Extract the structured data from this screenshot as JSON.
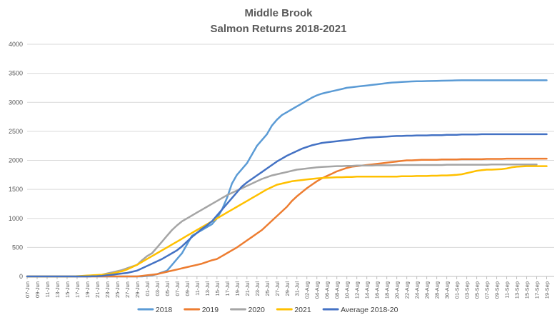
{
  "chart_data": {
    "type": "line",
    "title": "Middle Brook",
    "subtitle": "Salmon Returns 2018-2021",
    "xlabel": "",
    "ylabel": "",
    "ylim": [
      0,
      4000
    ],
    "yticks": [
      0,
      500,
      1000,
      1500,
      2000,
      2500,
      3000,
      3500,
      4000
    ],
    "grid": true,
    "legend_position": "bottom",
    "x_tick_labels": [
      "07-Jun",
      "09-Jun",
      "11-Jun",
      "13-Jun",
      "15-Jun",
      "17-Jun",
      "19-Jun",
      "21-Jun",
      "23-Jun",
      "25-Jun",
      "27-Jun",
      "29-Jun",
      "01-Jul",
      "03-Jul",
      "05-Jul",
      "07-Jul",
      "09-Jul",
      "11-Jul",
      "13-Jul",
      "15-Jul",
      "17-Jul",
      "19-Jul",
      "21-Jul",
      "23-Jul",
      "25-Jul",
      "27-Jul",
      "29-Jul",
      "31-Jul",
      "02-Aug",
      "04-Aug",
      "06-Aug",
      "08-Aug",
      "10-Aug",
      "12-Aug",
      "14-Aug",
      "16-Aug",
      "18-Aug",
      "20-Aug",
      "22-Aug",
      "24-Aug",
      "26-Aug",
      "28-Aug",
      "30-Aug",
      "01-Sep",
      "03-Sep",
      "05-Sep",
      "07-Sep",
      "09-Sep",
      "11-Sep",
      "13-Sep",
      "15-Sep",
      "17-Sep",
      "19-Sep"
    ],
    "series": [
      {
        "name": "2018",
        "color": "#5b9bd5",
        "values": [
          0,
          0,
          0,
          0,
          0,
          0,
          0,
          0,
          0,
          0,
          0,
          0,
          0,
          0,
          0,
          0,
          0,
          0,
          0,
          0,
          0,
          0,
          0,
          0,
          10,
          20,
          40,
          70,
          100,
          200,
          300,
          400,
          550,
          700,
          750,
          800,
          850,
          900,
          1000,
          1150,
          1350,
          1600,
          1750,
          1850,
          1950,
          2100,
          2250,
          2350,
          2450,
          2600,
          2700,
          2780,
          2830,
          2880,
          2930,
          2980,
          3030,
          3080,
          3120,
          3150,
          3170,
          3190,
          3210,
          3230,
          3250,
          3260,
          3270,
          3280,
          3290,
          3300,
          3310,
          3320,
          3330,
          3340,
          3345,
          3350,
          3355,
          3360,
          3362,
          3364,
          3366,
          3368,
          3370,
          3372,
          3374,
          3376,
          3378,
          3380,
          3380,
          3380,
          3380,
          3380,
          3380,
          3380,
          3380,
          3380,
          3380,
          3380,
          3380,
          3380,
          3380,
          3380,
          3380,
          3380,
          3380
        ]
      },
      {
        "name": "2019",
        "color": "#ed7d31",
        "values": [
          0,
          0,
          0,
          0,
          0,
          0,
          0,
          0,
          0,
          0,
          0,
          0,
          0,
          0,
          0,
          0,
          0,
          0,
          0,
          0,
          0,
          0,
          0,
          10,
          20,
          30,
          40,
          60,
          80,
          100,
          120,
          140,
          160,
          180,
          200,
          220,
          250,
          280,
          300,
          350,
          400,
          450,
          500,
          560,
          620,
          680,
          740,
          800,
          880,
          960,
          1040,
          1120,
          1200,
          1300,
          1380,
          1450,
          1520,
          1580,
          1640,
          1690,
          1730,
          1770,
          1810,
          1840,
          1870,
          1890,
          1900,
          1910,
          1920,
          1930,
          1940,
          1950,
          1960,
          1970,
          1980,
          1990,
          2000,
          2000,
          2005,
          2010,
          2010,
          2010,
          2010,
          2015,
          2015,
          2015,
          2015,
          2020,
          2020,
          2020,
          2020,
          2020,
          2025,
          2025,
          2025,
          2025,
          2030,
          2030,
          2030,
          2030,
          2030,
          2030,
          2030,
          2030,
          2030
        ]
      },
      {
        "name": "2020",
        "color": "#a5a5a5",
        "values": [
          0,
          0,
          0,
          0,
          0,
          0,
          0,
          0,
          0,
          0,
          0,
          5,
          10,
          15,
          20,
          30,
          50,
          70,
          90,
          110,
          140,
          170,
          200,
          280,
          350,
          400,
          500,
          600,
          700,
          800,
          880,
          950,
          1000,
          1050,
          1100,
          1150,
          1200,
          1250,
          1300,
          1350,
          1400,
          1440,
          1480,
          1520,
          1560,
          1600,
          1640,
          1680,
          1710,
          1740,
          1760,
          1780,
          1800,
          1820,
          1840,
          1850,
          1860,
          1870,
          1880,
          1885,
          1890,
          1895,
          1900,
          1900,
          1905,
          1905,
          1910,
          1910,
          1910,
          1910,
          1915,
          1915,
          1915,
          1915,
          1920,
          1920,
          1920,
          1920,
          1920,
          1920,
          1920,
          1920,
          1920,
          1920,
          1925,
          1925,
          1925,
          1925,
          1925,
          1925,
          1925,
          1925,
          1925,
          1930,
          1930,
          1930,
          1930,
          1930,
          1930,
          1930,
          1930,
          1930,
          1930
        ]
      },
      {
        "name": "2021",
        "color": "#ffc000",
        "values": [
          0,
          0,
          0,
          0,
          0,
          0,
          0,
          0,
          0,
          0,
          5,
          10,
          15,
          20,
          25,
          30,
          40,
          50,
          70,
          90,
          120,
          160,
          200,
          250,
          300,
          350,
          400,
          450,
          500,
          550,
          600,
          650,
          700,
          750,
          800,
          850,
          900,
          950,
          1000,
          1050,
          1100,
          1150,
          1200,
          1250,
          1300,
          1350,
          1400,
          1450,
          1500,
          1540,
          1580,
          1600,
          1620,
          1640,
          1650,
          1660,
          1670,
          1680,
          1690,
          1695,
          1700,
          1705,
          1710,
          1710,
          1715,
          1715,
          1720,
          1720,
          1720,
          1720,
          1720,
          1720,
          1720,
          1720,
          1720,
          1725,
          1725,
          1725,
          1730,
          1730,
          1730,
          1735,
          1735,
          1740,
          1740,
          1745,
          1750,
          1760,
          1780,
          1800,
          1820,
          1830,
          1840,
          1840,
          1845,
          1850,
          1860,
          1880,
          1890,
          1895,
          1900,
          1900,
          1900,
          1900,
          1900
        ]
      },
      {
        "name": "Average 2018-20",
        "color": "#4472c4",
        "values": [
          0,
          0,
          0,
          0,
          0,
          0,
          0,
          0,
          0,
          0,
          0,
          0,
          0,
          2,
          5,
          10,
          20,
          30,
          40,
          50,
          60,
          80,
          100,
          140,
          180,
          220,
          260,
          300,
          350,
          400,
          450,
          520,
          600,
          680,
          750,
          820,
          880,
          950,
          1050,
          1150,
          1250,
          1350,
          1450,
          1550,
          1620,
          1680,
          1740,
          1800,
          1860,
          1920,
          1980,
          2030,
          2080,
          2120,
          2160,
          2200,
          2230,
          2260,
          2280,
          2300,
          2310,
          2320,
          2330,
          2340,
          2350,
          2360,
          2370,
          2380,
          2390,
          2395,
          2400,
          2405,
          2410,
          2415,
          2420,
          2420,
          2425,
          2425,
          2430,
          2430,
          2430,
          2435,
          2435,
          2435,
          2440,
          2440,
          2440,
          2445,
          2445,
          2445,
          2445,
          2450,
          2450,
          2450,
          2450,
          2450,
          2450,
          2450,
          2450,
          2450,
          2450,
          2450,
          2450,
          2450,
          2450
        ]
      }
    ]
  }
}
